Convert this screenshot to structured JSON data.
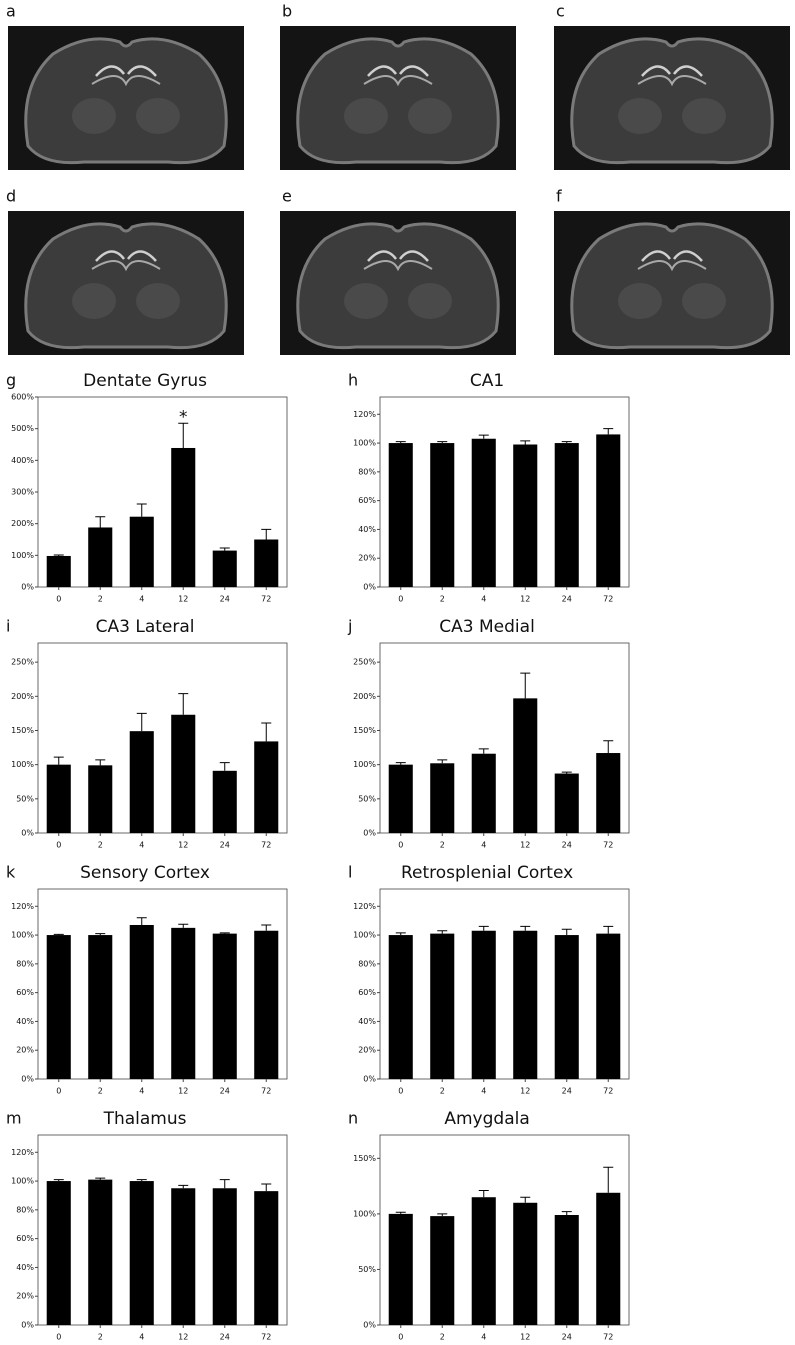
{
  "images": [
    {
      "label": "a"
    },
    {
      "label": "b"
    },
    {
      "label": "c"
    },
    {
      "label": "d"
    },
    {
      "label": "e"
    },
    {
      "label": "f"
    }
  ],
  "chart_data": [
    {
      "type": "bar",
      "label": "g",
      "title": "Dentate Gyrus",
      "categories": [
        "0",
        "2",
        "4",
        "12",
        "24",
        "72"
      ],
      "values": [
        98,
        188,
        222,
        439,
        115,
        150
      ],
      "errors": [
        3,
        34,
        40,
        78,
        8,
        32
      ],
      "color": "#000000",
      "ylim": [
        0,
        600
      ],
      "yticks": [
        {
          "value": 0,
          "label": "0%"
        },
        {
          "value": 100,
          "label": "100%"
        },
        {
          "value": 200,
          "label": "200%"
        },
        {
          "value": 300,
          "label": "300%"
        },
        {
          "value": 400,
          "label": "400%"
        },
        {
          "value": 500,
          "label": "500%"
        },
        {
          "value": 600,
          "label": "600%"
        }
      ],
      "annotation": {
        "text": "*",
        "category": "12"
      }
    },
    {
      "type": "bar",
      "label": "h",
      "title": "CA1",
      "categories": [
        "0",
        "2",
        "4",
        "12",
        "24",
        "72"
      ],
      "values": [
        100,
        100,
        103,
        99,
        100,
        106
      ],
      "errors": [
        1,
        1,
        2.5,
        2.5,
        1,
        4
      ],
      "color": "#000000",
      "ylim": [
        0,
        132
      ],
      "yticks": [
        {
          "value": 0,
          "label": "0%"
        },
        {
          "value": 20,
          "label": "20%"
        },
        {
          "value": 40,
          "label": "40%"
        },
        {
          "value": 60,
          "label": "60%"
        },
        {
          "value": 80,
          "label": "80%"
        },
        {
          "value": 100,
          "label": "100%"
        },
        {
          "value": 120,
          "label": "120%"
        }
      ]
    },
    {
      "type": "bar",
      "label": "i",
      "title": "CA3 Lateral",
      "categories": [
        "0",
        "2",
        "4",
        "12",
        "24",
        "72"
      ],
      "values": [
        100,
        99,
        149,
        173,
        91,
        134
      ],
      "errors": [
        11,
        8,
        26,
        31,
        12,
        27
      ],
      "color": "#000000",
      "ylim": [
        0,
        278
      ],
      "yticks": [
        {
          "value": 0,
          "label": "0%"
        },
        {
          "value": 50,
          "label": "50%"
        },
        {
          "value": 100,
          "label": "100%"
        },
        {
          "value": 150,
          "label": "150%"
        },
        {
          "value": 200,
          "label": "200%"
        },
        {
          "value": 250,
          "label": "250%"
        }
      ]
    },
    {
      "type": "bar",
      "label": "j",
      "title": "CA3 Medial",
      "categories": [
        "0",
        "2",
        "4",
        "12",
        "24",
        "72"
      ],
      "values": [
        100,
        102,
        116,
        197,
        87,
        117
      ],
      "errors": [
        3,
        5,
        7,
        37,
        2,
        18
      ],
      "color": "#000000",
      "ylim": [
        0,
        278
      ],
      "yticks": [
        {
          "value": 0,
          "label": "0%"
        },
        {
          "value": 50,
          "label": "50%"
        },
        {
          "value": 100,
          "label": "100%"
        },
        {
          "value": 150,
          "label": "150%"
        },
        {
          "value": 200,
          "label": "200%"
        },
        {
          "value": 250,
          "label": "250%"
        }
      ]
    },
    {
      "type": "bar",
      "label": "k",
      "title": "Sensory Cortex",
      "categories": [
        "0",
        "2",
        "4",
        "12",
        "24",
        "72"
      ],
      "values": [
        100,
        100,
        107,
        105,
        101,
        103
      ],
      "errors": [
        0.5,
        1,
        5,
        2.5,
        0.5,
        4
      ],
      "color": "#000000",
      "ylim": [
        0,
        132
      ],
      "yticks": [
        {
          "value": 0,
          "label": "0%"
        },
        {
          "value": 20,
          "label": "20%"
        },
        {
          "value": 40,
          "label": "40%"
        },
        {
          "value": 60,
          "label": "60%"
        },
        {
          "value": 80,
          "label": "80%"
        },
        {
          "value": 100,
          "label": "100%"
        },
        {
          "value": 120,
          "label": "120%"
        }
      ]
    },
    {
      "type": "bar",
      "label": "l",
      "title": "Retrosplenial Cortex",
      "categories": [
        "0",
        "2",
        "4",
        "12",
        "24",
        "72"
      ],
      "values": [
        100,
        101,
        103,
        103,
        100,
        101
      ],
      "errors": [
        1.5,
        2,
        3,
        3,
        4,
        5
      ],
      "color": "#000000",
      "ylim": [
        0,
        132
      ],
      "yticks": [
        {
          "value": 0,
          "label": "0%"
        },
        {
          "value": 20,
          "label": "20%"
        },
        {
          "value": 40,
          "label": "40%"
        },
        {
          "value": 60,
          "label": "60%"
        },
        {
          "value": 80,
          "label": "80%"
        },
        {
          "value": 100,
          "label": "100%"
        },
        {
          "value": 120,
          "label": "120%"
        }
      ]
    },
    {
      "type": "bar",
      "label": "m",
      "title": "Thalamus",
      "categories": [
        "0",
        "2",
        "4",
        "12",
        "24",
        "72"
      ],
      "values": [
        100,
        101,
        100,
        95,
        95,
        93
      ],
      "errors": [
        1,
        1,
        1,
        2,
        6,
        5
      ],
      "color": "#000000",
      "ylim": [
        0,
        132
      ],
      "yticks": [
        {
          "value": 0,
          "label": "0%"
        },
        {
          "value": 20,
          "label": "20%"
        },
        {
          "value": 40,
          "label": "40%"
        },
        {
          "value": 60,
          "label": "60%"
        },
        {
          "value": 80,
          "label": "80%"
        },
        {
          "value": 100,
          "label": "100%"
        },
        {
          "value": 120,
          "label": "120%"
        }
      ]
    },
    {
      "type": "bar",
      "label": "n",
      "title": "Amygdala",
      "categories": [
        "0",
        "2",
        "4",
        "12",
        "24",
        "72"
      ],
      "values": [
        100,
        98,
        115,
        110,
        99,
        119
      ],
      "errors": [
        1.5,
        2,
        6,
        5,
        3,
        23
      ],
      "color": "#000000",
      "ylim": [
        0,
        171
      ],
      "yticks": [
        {
          "value": 0,
          "label": "0%"
        },
        {
          "value": 50,
          "label": "50%"
        },
        {
          "value": 100,
          "label": "100%"
        },
        {
          "value": 150,
          "label": "150%"
        }
      ]
    }
  ]
}
